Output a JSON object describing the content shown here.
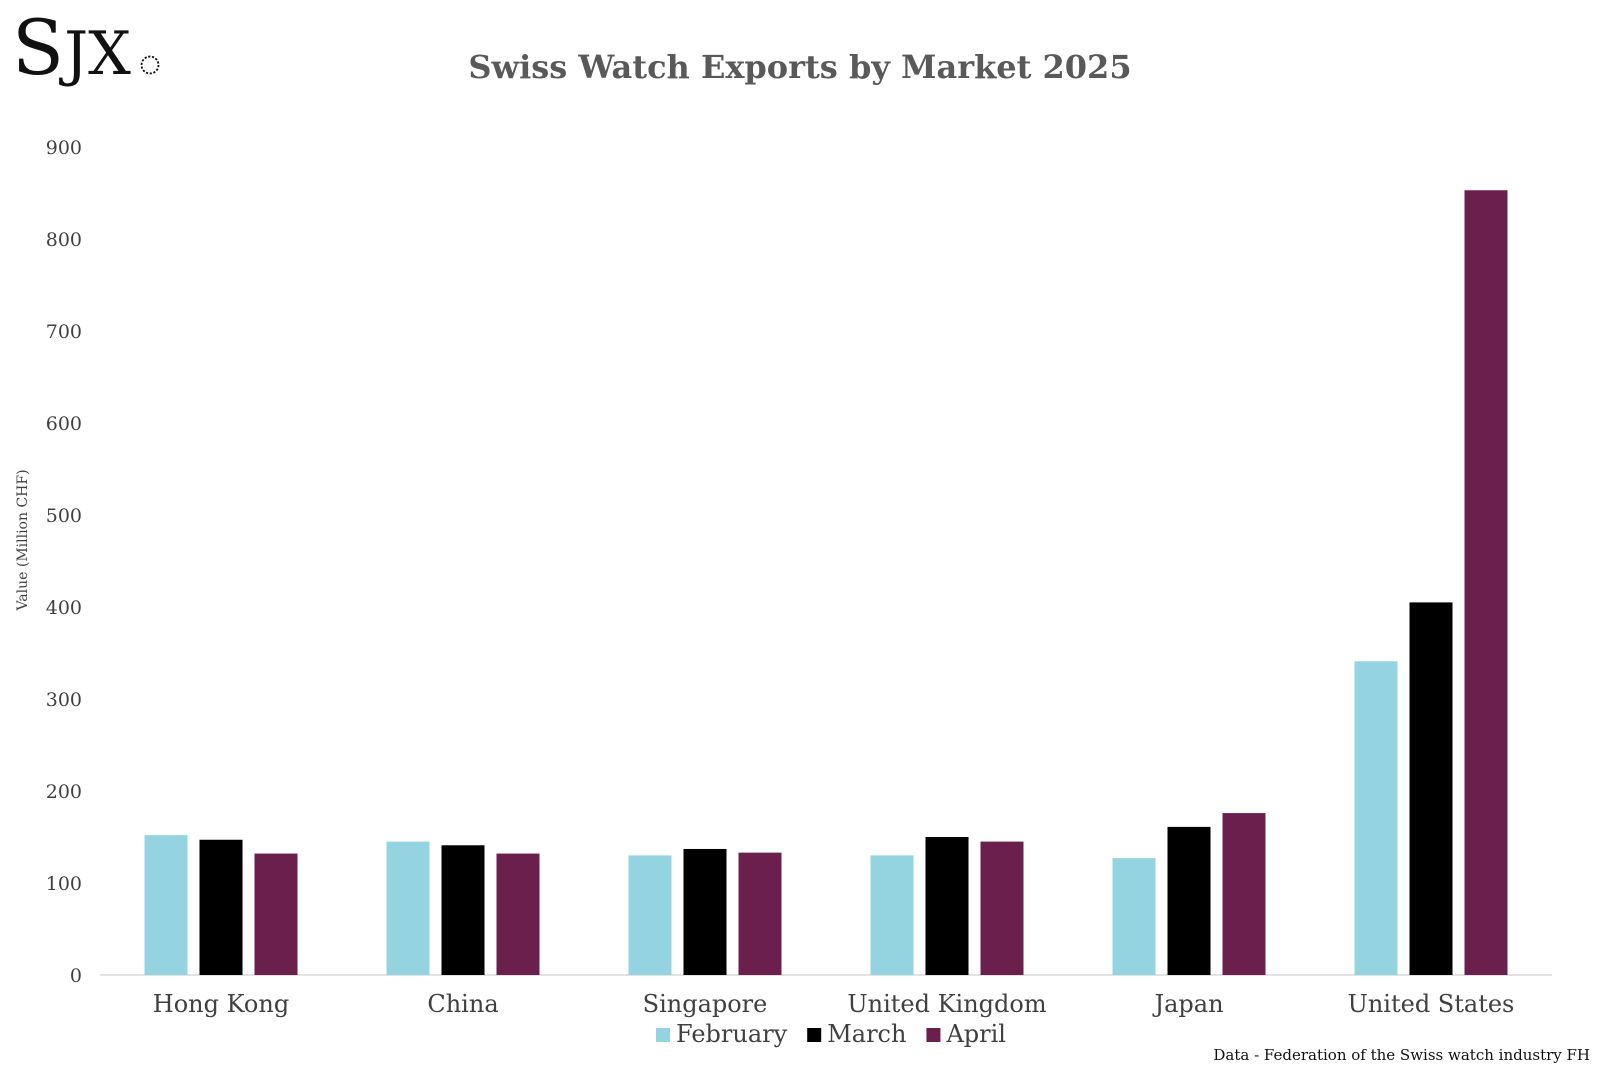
{
  "logo": {
    "text": "SJX",
    "icon": "watch-crown-circle-icon"
  },
  "source_note": "Data - Federation of the Swiss watch industry FH",
  "chart_data": {
    "type": "bar",
    "title": "Swiss Watch Exports by Market 2025",
    "xlabel": "",
    "ylabel": "Value (Million CHF)",
    "ylim": [
      0,
      900
    ],
    "yticks": [
      0,
      100,
      200,
      300,
      400,
      500,
      600,
      700,
      800,
      900
    ],
    "grid": false,
    "legend_position": "bottom-center",
    "categories": [
      "Hong Kong",
      "China",
      "Singapore",
      "United Kingdom",
      "Japan",
      "United States"
    ],
    "series": [
      {
        "name": "February",
        "color": "#93d4e0",
        "values": [
          152,
          145,
          130,
          130,
          127,
          341
        ]
      },
      {
        "name": "March",
        "color": "#000000",
        "values": [
          147,
          141,
          137,
          150,
          161,
          405
        ]
      },
      {
        "name": "April",
        "color": "#6a1f4c",
        "values": [
          132,
          132,
          133,
          145,
          176,
          853
        ]
      }
    ]
  }
}
